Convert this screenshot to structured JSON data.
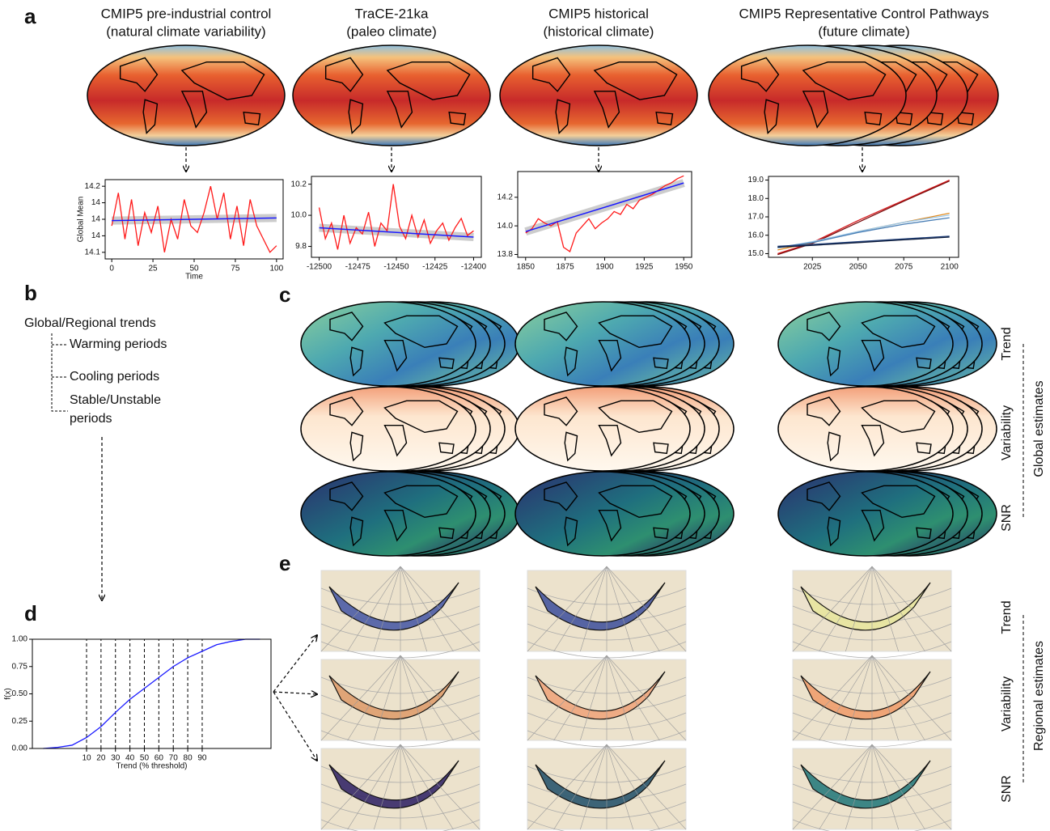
{
  "panel_labels": [
    "a",
    "b",
    "c",
    "d",
    "e"
  ],
  "columns": [
    {
      "title": "CMIP5 pre-industrial control",
      "subtitle": "(natural climate variability)"
    },
    {
      "title": "TraCE-21ka",
      "subtitle": "(paleo climate)"
    },
    {
      "title": "CMIP5 historical",
      "subtitle": "(historical climate)"
    },
    {
      "title": "CMIP5 Representative Control Pathways",
      "subtitle": "(future climate)"
    }
  ],
  "trends": {
    "title": "Global/Regional trends",
    "items": [
      "Warming periods",
      "Cooling periods",
      "Stable/Unstable",
      "periods"
    ]
  },
  "global_rows": [
    "Trend",
    "Variability",
    "SNR"
  ],
  "global_group": "Global estimates",
  "regional_rows": [
    "Trend",
    "Variability",
    "SNR"
  ],
  "regional_group": "Regional estimates",
  "chart_data": [
    {
      "type": "line",
      "ylabel": "Global Mean",
      "xlabel": "Time",
      "x": [
        0,
        4,
        8,
        12,
        16,
        20,
        24,
        28,
        32,
        36,
        40,
        44,
        48,
        52,
        56,
        60,
        64,
        68,
        72,
        76,
        80,
        84,
        88,
        92,
        96,
        100
      ],
      "series": [
        {
          "color": "#ff1a1a",
          "values": [
            14.14,
            14.19,
            14.12,
            14.18,
            14.11,
            14.16,
            14.13,
            14.17,
            14.1,
            14.15,
            14.12,
            14.18,
            14.14,
            14.13,
            14.16,
            14.2,
            14.15,
            14.19,
            14.12,
            14.17,
            14.11,
            14.18,
            14.14,
            14.12,
            14.1,
            14.11
          ]
        }
      ],
      "fit": {
        "color": "#1a1aff",
        "x": [
          0,
          100
        ],
        "values": [
          14.148,
          14.152
        ]
      },
      "xlim": [
        -4,
        104
      ],
      "ylim": [
        14.09,
        14.21
      ],
      "xticks": [
        0,
        25,
        50,
        75,
        100
      ],
      "yticks": [
        14.1,
        {
          "value": 14.125,
          "label": "14"
        },
        {
          "value": 14.15,
          "label": "14"
        },
        {
          "value": 14.175,
          "label": "14"
        },
        14.2
      ]
    },
    {
      "type": "line",
      "x": [
        -12500,
        -12496,
        -12492,
        -12488,
        -12484,
        -12480,
        -12476,
        -12472,
        -12468,
        -12464,
        -12460,
        -12456,
        -12452,
        -12448,
        -12444,
        -12440,
        -12436,
        -12432,
        -12428,
        -12424,
        -12420,
        -12416,
        -12412,
        -12408,
        -12404,
        -12400
      ],
      "series": [
        {
          "color": "#ff1a1a",
          "values": [
            10.05,
            9.85,
            9.95,
            9.78,
            10.0,
            9.82,
            9.92,
            9.88,
            10.02,
            9.8,
            9.95,
            9.9,
            10.2,
            9.93,
            9.85,
            10.0,
            9.86,
            9.97,
            9.82,
            9.9,
            9.95,
            9.84,
            9.92,
            9.98,
            9.87,
            9.9
          ]
        }
      ],
      "fit": {
        "color": "#1a1aff",
        "x": [
          -12500,
          -12400
        ],
        "values": [
          9.92,
          9.86
        ]
      },
      "xlim": [
        -12505,
        -12395
      ],
      "ylim": [
        9.73,
        10.25
      ],
      "xticks": [
        -12500,
        -12475,
        -12450,
        -12425,
        -12400
      ],
      "yticks": [
        9.8,
        {
          "value": 10,
          "label": "10.0"
        },
        10.2
      ]
    },
    {
      "type": "line",
      "x": [
        1850,
        1854,
        1858,
        1862,
        1866,
        1870,
        1874,
        1878,
        1882,
        1886,
        1890,
        1894,
        1898,
        1902,
        1906,
        1910,
        1914,
        1918,
        1922,
        1926,
        1930,
        1934,
        1938,
        1942,
        1946,
        1950
      ],
      "series": [
        {
          "color": "#ff1a1a",
          "values": [
            13.95,
            13.98,
            14.05,
            14.02,
            14.0,
            14.03,
            13.85,
            13.82,
            13.95,
            14.0,
            14.05,
            13.98,
            14.02,
            14.05,
            14.1,
            14.08,
            14.15,
            14.12,
            14.18,
            14.2,
            14.22,
            14.25,
            14.28,
            14.3,
            14.33,
            14.35
          ]
        }
      ],
      "fit": {
        "color": "#1a1aff",
        "x": [
          1850,
          1950
        ],
        "values": [
          13.96,
          14.3
        ]
      },
      "xlim": [
        1845,
        1955
      ],
      "ylim": [
        13.78,
        14.38
      ],
      "xticks": [
        1850,
        1875,
        1900,
        1925,
        1950
      ],
      "yticks": [
        13.8,
        {
          "value": 14,
          "label": "14.0"
        },
        14.2
      ]
    },
    {
      "type": "line",
      "x": [
        2006,
        2025,
        2050,
        2075,
        2100
      ],
      "series": [
        {
          "color": "#d7191c",
          "values": [
            15.0,
            15.6,
            16.8,
            17.9,
            19.0
          ]
        },
        {
          "color": "#7a0d0d",
          "values": [
            14.95,
            15.55,
            16.7,
            17.85,
            18.95
          ]
        },
        {
          "color": "#e08a1e",
          "values": [
            15.2,
            15.6,
            16.2,
            16.7,
            17.2
          ]
        },
        {
          "color": "#9cc8ea",
          "values": [
            15.3,
            15.65,
            16.2,
            16.7,
            17.1
          ]
        },
        {
          "color": "#4a7fb5",
          "values": [
            15.35,
            15.6,
            16.15,
            16.6,
            16.95
          ]
        },
        {
          "color": "#1f3f7a",
          "values": [
            15.4,
            15.5,
            15.65,
            15.8,
            15.95
          ]
        },
        {
          "color": "#0b1a3a",
          "values": [
            15.35,
            15.45,
            15.6,
            15.75,
            15.9
          ]
        }
      ],
      "xlim": [
        2001,
        2105
      ],
      "ylim": [
        14.8,
        19.2
      ],
      "xticks": [
        2025,
        2050,
        2075,
        2100
      ],
      "yticks": [
        {
          "value": 15,
          "label": "15.0"
        },
        {
          "value": 16,
          "label": "16.0"
        },
        {
          "value": 17,
          "label": "17.0"
        },
        {
          "value": 18,
          "label": "18.0"
        },
        {
          "value": 19,
          "label": "19.0"
        }
      ]
    },
    {
      "type": "line",
      "ylabel": "f(x)",
      "xlabel": "Trend (% threshold)",
      "tick_guides": true,
      "x": [
        -20,
        -10,
        0,
        10,
        20,
        30,
        40,
        50,
        60,
        70,
        80,
        90,
        100,
        110,
        120,
        130
      ],
      "series": [
        {
          "color": "#1a1aff",
          "values": [
            0,
            0.01,
            0.03,
            0.1,
            0.2,
            0.33,
            0.45,
            0.55,
            0.65,
            0.75,
            0.83,
            0.89,
            0.95,
            0.98,
            1,
            1
          ]
        }
      ],
      "xlim": [
        -27.5,
        137.6
      ],
      "ylim": [
        0,
        1
      ],
      "xticks": [
        10,
        20,
        30,
        40,
        50,
        60,
        70,
        80,
        90
      ],
      "yticks": [
        {
          "value": 0,
          "label": "0.00"
        },
        {
          "value": 0.25,
          "label": "0.25"
        },
        {
          "value": 0.5,
          "label": "0.50"
        },
        {
          "value": 0.75,
          "label": "0.75"
        },
        {
          "value": 1,
          "label": "1.00"
        }
      ]
    }
  ]
}
